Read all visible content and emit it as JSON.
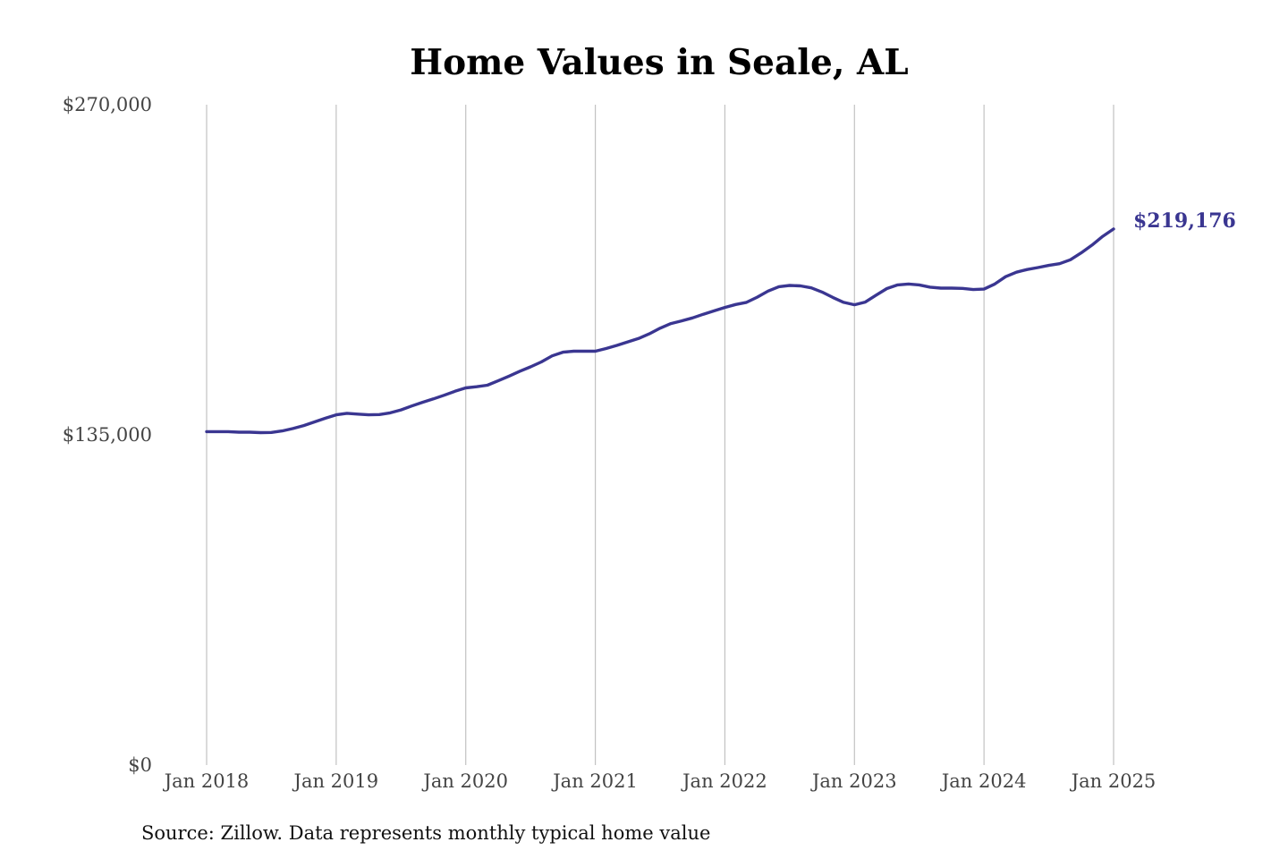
{
  "chart_data": {
    "type": "line",
    "title": "Home Values in Seale, AL",
    "source": "Source: Zillow. Data represents monthly typical home value",
    "xlabel": "",
    "ylabel": "",
    "ylim": [
      0,
      270000
    ],
    "y_ticks": [
      {
        "value": 0,
        "label": "$0"
      },
      {
        "value": 135000,
        "label": "$135,000"
      },
      {
        "value": 270000,
        "label": "$270,000"
      }
    ],
    "x_ticks": [
      "Jan 2018",
      "Jan 2019",
      "Jan 2020",
      "Jan 2021",
      "Jan 2022",
      "Jan 2023",
      "Jan 2024",
      "Jan 2025"
    ],
    "grid": "vertical",
    "line_color": "#3a3691",
    "end_label": "$219,176",
    "series": [
      {
        "x": [
          "2018-01",
          "2018-02",
          "2018-03",
          "2018-04",
          "2018-05",
          "2018-06",
          "2018-07",
          "2018-08",
          "2018-09",
          "2018-10",
          "2018-11",
          "2018-12",
          "2019-01",
          "2019-02",
          "2019-03",
          "2019-04",
          "2019-05",
          "2019-06",
          "2019-07",
          "2019-08",
          "2019-09",
          "2019-10",
          "2019-11",
          "2019-12",
          "2020-01",
          "2020-02",
          "2020-03",
          "2020-04",
          "2020-05",
          "2020-06",
          "2020-07",
          "2020-08",
          "2020-09",
          "2020-10",
          "2020-11",
          "2020-12",
          "2021-01",
          "2021-02",
          "2021-03",
          "2021-04",
          "2021-05",
          "2021-06",
          "2021-07",
          "2021-08",
          "2021-09",
          "2021-10",
          "2021-11",
          "2021-12",
          "2022-01",
          "2022-02",
          "2022-03",
          "2022-04",
          "2022-05",
          "2022-06",
          "2022-07",
          "2022-08",
          "2022-09",
          "2022-10",
          "2022-11",
          "2022-12",
          "2023-01",
          "2023-02",
          "2023-03",
          "2023-04",
          "2023-05",
          "2023-06",
          "2023-07",
          "2023-08",
          "2023-09",
          "2023-10",
          "2023-11",
          "2023-12",
          "2024-01",
          "2024-02",
          "2024-03",
          "2024-04",
          "2024-05",
          "2024-06",
          "2024-07",
          "2024-08",
          "2024-09",
          "2024-10",
          "2024-11",
          "2024-12",
          "2025-01"
        ],
        "values": [
          136300,
          136300,
          136300,
          136100,
          136100,
          135900,
          136000,
          136600,
          137600,
          138800,
          140300,
          141800,
          143200,
          143800,
          143500,
          143200,
          143300,
          144000,
          145200,
          146800,
          148300,
          149700,
          151200,
          152800,
          154200,
          154700,
          155300,
          157100,
          159000,
          161000,
          162800,
          164800,
          167300,
          168800,
          169200,
          169200,
          169200,
          170300,
          171600,
          173000,
          174400,
          176300,
          178600,
          180500,
          181600,
          182800,
          184300,
          185700,
          187100,
          188300,
          189200,
          191300,
          193800,
          195600,
          196100,
          195900,
          195100,
          193400,
          191200,
          189200,
          188200,
          189300,
          192100,
          194800,
          196300,
          196700,
          196300,
          195400,
          195000,
          195000,
          194900,
          194400,
          194600,
          196700,
          199700,
          201500,
          202600,
          203400,
          204300,
          205000,
          206600,
          209400,
          212600,
          216200,
          219176
        ]
      }
    ]
  }
}
